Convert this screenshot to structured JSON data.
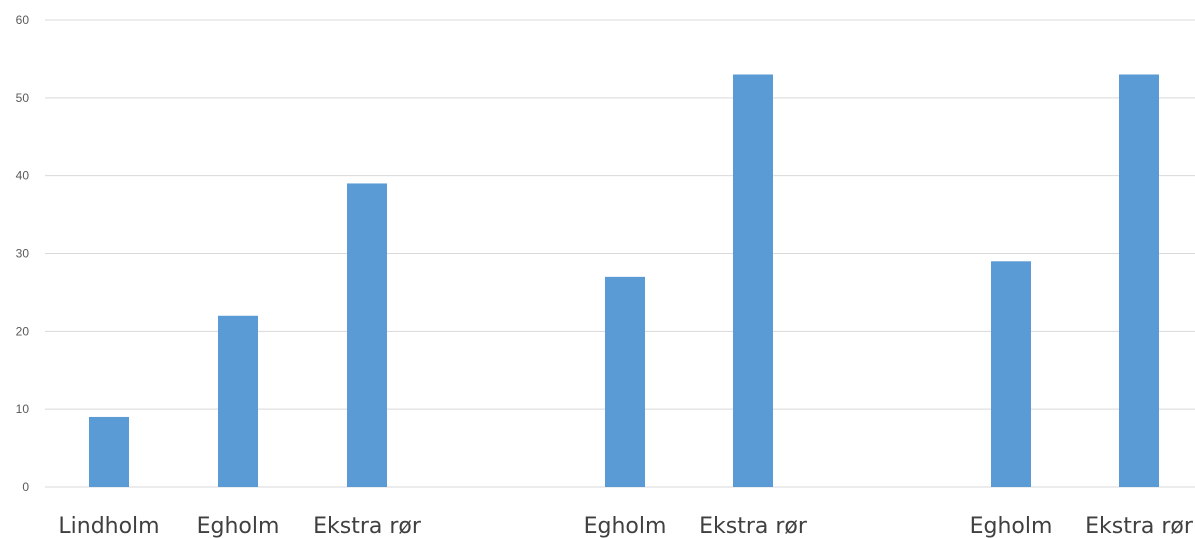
{
  "chart_data": {
    "type": "bar",
    "title": "",
    "xlabel": "",
    "ylabel": "",
    "ylim": [
      0,
      60
    ],
    "yticks": [
      0,
      10,
      20,
      30,
      40,
      50,
      60
    ],
    "grid": true,
    "legend": "none",
    "color": "#5b9bd5",
    "categories": [
      "Lindholm",
      "Egholm",
      "Ekstra rør",
      "Egholm",
      "Ekstra rør",
      "Egholm",
      "Ekstra rør"
    ],
    "values": [
      9,
      22,
      39,
      27,
      53,
      29,
      53
    ]
  }
}
